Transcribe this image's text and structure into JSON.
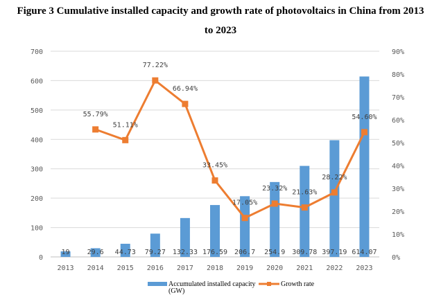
{
  "chart_data": {
    "type": "bar+line",
    "title_line1": "Figure 3 Cumulative installed capacity and growth rate of photovoltaics in China from 2013",
    "title_line2": "to 2023",
    "categories": [
      "2013",
      "2014",
      "2015",
      "2016",
      "2017",
      "2018",
      "2019",
      "2020",
      "2021",
      "2022",
      "2023"
    ],
    "series": [
      {
        "name": "Accumulated installed capacity (GW)",
        "type": "bar",
        "axis": "left",
        "color": "#5B9BD5",
        "values": [
          19,
          29.6,
          44.73,
          79.27,
          132.33,
          176.59,
          206.7,
          254.9,
          309.78,
          397.19,
          614.07
        ],
        "labels": [
          "19",
          "29.6",
          "44.73",
          "79.27",
          "132.33",
          "176.59",
          "206.7",
          "254.9",
          "309.78",
          "397.19",
          "614.07"
        ]
      },
      {
        "name": "Growth rate",
        "type": "line",
        "axis": "right",
        "color": "#ED7D31",
        "values": [
          null,
          55.79,
          51.11,
          77.22,
          66.94,
          33.45,
          17.05,
          23.32,
          21.63,
          28.22,
          54.6
        ],
        "labels": [
          null,
          "55.79%",
          "51.11%",
          "77.22%",
          "66.94%",
          "33.45%",
          "17.05%",
          "23.32%",
          "21.63%",
          "28.22%",
          "54.60%"
        ]
      }
    ],
    "left_axis": {
      "ylim": [
        0,
        700
      ],
      "ticks": [
        "0",
        "100",
        "200",
        "300",
        "400",
        "500",
        "600",
        "700"
      ]
    },
    "right_axis": {
      "ylim": [
        0,
        90
      ],
      "ticks": [
        "0%",
        "10%",
        "20%",
        "30%",
        "40%",
        "50%",
        "60%",
        "70%",
        "80%",
        "90%"
      ]
    },
    "legend": {
      "position": "bottom",
      "bar_label_line1": "Accumulated installed capacity",
      "bar_label_line2": "(GW)",
      "line_label": "Growth rate"
    },
    "grid": true
  }
}
